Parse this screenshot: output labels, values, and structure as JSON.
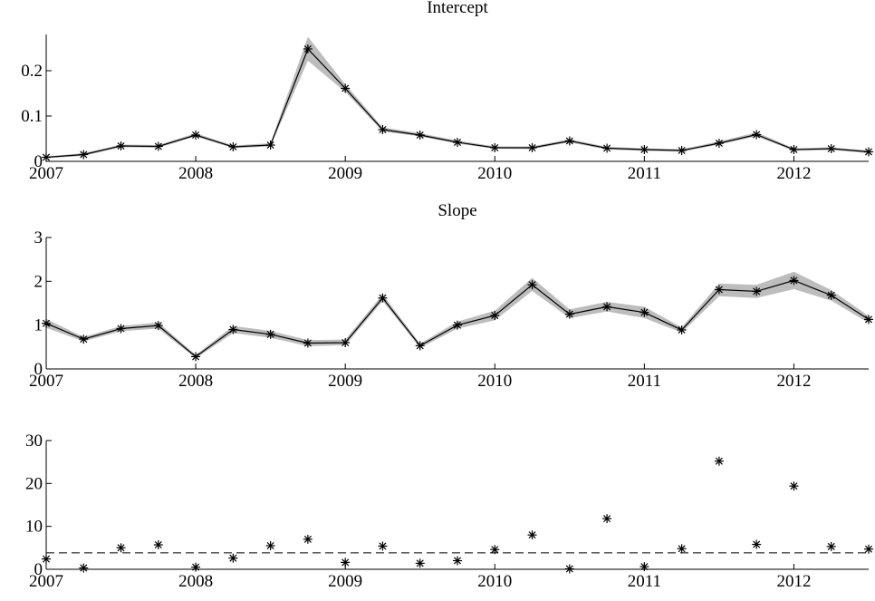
{
  "chart_data": [
    {
      "type": "line",
      "title": "Intercept",
      "xlabel": "",
      "ylabel": "",
      "xlim": [
        2007,
        2012.5
      ],
      "ylim": [
        0,
        0.28
      ],
      "x_ticks": [
        2007,
        2008,
        2009,
        2010,
        2011,
        2012
      ],
      "x_tick_labels": [
        "2007",
        "2008",
        "2009",
        "2010",
        "2011",
        "2012"
      ],
      "y_ticks": [
        0,
        0.1,
        0.2
      ],
      "y_tick_labels": [
        "0",
        "0.1",
        "0.2"
      ],
      "grid": false,
      "series": [
        {
          "marker": "asterisk",
          "shaded_band": true,
          "x": [
            2007,
            2007.25,
            2007.5,
            2007.75,
            2008,
            2008.25,
            2008.5,
            2008.75,
            2009,
            2009.25,
            2009.5,
            2009.75,
            2010,
            2010.25,
            2010.5,
            2010.75,
            2011,
            2011.25,
            2011.5,
            2011.75,
            2012,
            2012.25,
            2012.5
          ],
          "values": [
            0.009,
            0.015,
            0.034,
            0.033,
            0.058,
            0.032,
            0.036,
            0.248,
            0.161,
            0.07,
            0.058,
            0.042,
            0.03,
            0.03,
            0.045,
            0.029,
            0.026,
            0.024,
            0.04,
            0.059,
            0.026,
            0.028,
            0.021
          ],
          "lower": [
            0.007,
            0.012,
            0.031,
            0.03,
            0.055,
            0.029,
            0.033,
            0.222,
            0.153,
            0.066,
            0.055,
            0.039,
            0.028,
            0.027,
            0.042,
            0.026,
            0.023,
            0.021,
            0.037,
            0.055,
            0.023,
            0.025,
            0.018
          ],
          "upper": [
            0.011,
            0.018,
            0.037,
            0.036,
            0.062,
            0.035,
            0.04,
            0.275,
            0.17,
            0.075,
            0.062,
            0.046,
            0.033,
            0.033,
            0.049,
            0.032,
            0.029,
            0.027,
            0.044,
            0.064,
            0.029,
            0.031,
            0.024
          ]
        }
      ]
    },
    {
      "type": "line",
      "title": "Slope",
      "xlabel": "",
      "ylabel": "",
      "xlim": [
        2007,
        2012.5
      ],
      "ylim": [
        0,
        3
      ],
      "x_ticks": [
        2007,
        2008,
        2009,
        2010,
        2011,
        2012
      ],
      "x_tick_labels": [
        "2007",
        "2008",
        "2009",
        "2010",
        "2011",
        "2012"
      ],
      "y_ticks": [
        0,
        1,
        2,
        3
      ],
      "y_tick_labels": [
        "0",
        "1",
        "2",
        "3"
      ],
      "grid": false,
      "series": [
        {
          "marker": "asterisk",
          "shaded_band": true,
          "x": [
            2007,
            2007.25,
            2007.5,
            2007.75,
            2008,
            2008.25,
            2008.5,
            2008.75,
            2009,
            2009.25,
            2009.5,
            2009.75,
            2010,
            2010.25,
            2010.5,
            2010.75,
            2011,
            2011.25,
            2011.5,
            2011.75,
            2012,
            2012.25,
            2012.5
          ],
          "values": [
            1.04,
            0.68,
            0.92,
            0.99,
            0.28,
            0.9,
            0.79,
            0.59,
            0.6,
            1.62,
            0.53,
            1.0,
            1.22,
            1.92,
            1.25,
            1.42,
            1.29,
            0.89,
            1.81,
            1.77,
            2.02,
            1.68,
            1.13
          ],
          "lower": [
            0.94,
            0.63,
            0.86,
            0.92,
            0.24,
            0.82,
            0.71,
            0.52,
            0.54,
            1.55,
            0.48,
            0.92,
            1.11,
            1.78,
            1.16,
            1.31,
            1.16,
            0.83,
            1.66,
            1.62,
            1.82,
            1.56,
            1.05
          ],
          "upper": [
            1.14,
            0.73,
            0.98,
            1.06,
            0.32,
            0.98,
            0.87,
            0.66,
            0.67,
            1.7,
            0.58,
            1.08,
            1.33,
            2.08,
            1.36,
            1.53,
            1.42,
            0.95,
            1.95,
            1.92,
            2.22,
            1.8,
            1.21
          ]
        }
      ]
    },
    {
      "type": "scatter",
      "title": "",
      "xlabel": "",
      "ylabel": "",
      "xlim": [
        2007,
        2012.5
      ],
      "ylim": [
        0,
        30
      ],
      "x_ticks": [
        2007,
        2008,
        2009,
        2010,
        2011,
        2012
      ],
      "x_tick_labels": [
        "2007",
        "2008",
        "2009",
        "2010",
        "2011",
        "2012"
      ],
      "y_ticks": [
        0,
        10,
        20,
        30
      ],
      "y_tick_labels": [
        "0",
        "10",
        "20",
        "30"
      ],
      "grid": false,
      "reference_line": {
        "y": 3.84,
        "style": "dashed"
      },
      "series": [
        {
          "marker": "asterisk",
          "x": [
            2007,
            2007.25,
            2007.5,
            2007.75,
            2008,
            2008.25,
            2008.5,
            2008.75,
            2009,
            2009.25,
            2009.5,
            2009.75,
            2010,
            2010.25,
            2010.5,
            2010.75,
            2011,
            2011.25,
            2011.5,
            2011.75,
            2012,
            2012.25,
            2012.5
          ],
          "values": [
            2.4,
            0.3,
            5.0,
            5.7,
            0.5,
            2.6,
            5.5,
            7.0,
            1.6,
            5.4,
            1.4,
            2.0,
            4.6,
            8.0,
            0.1,
            11.8,
            0.6,
            4.8,
            25.2,
            5.8,
            19.4,
            5.3,
            4.7
          ]
        }
      ]
    }
  ]
}
